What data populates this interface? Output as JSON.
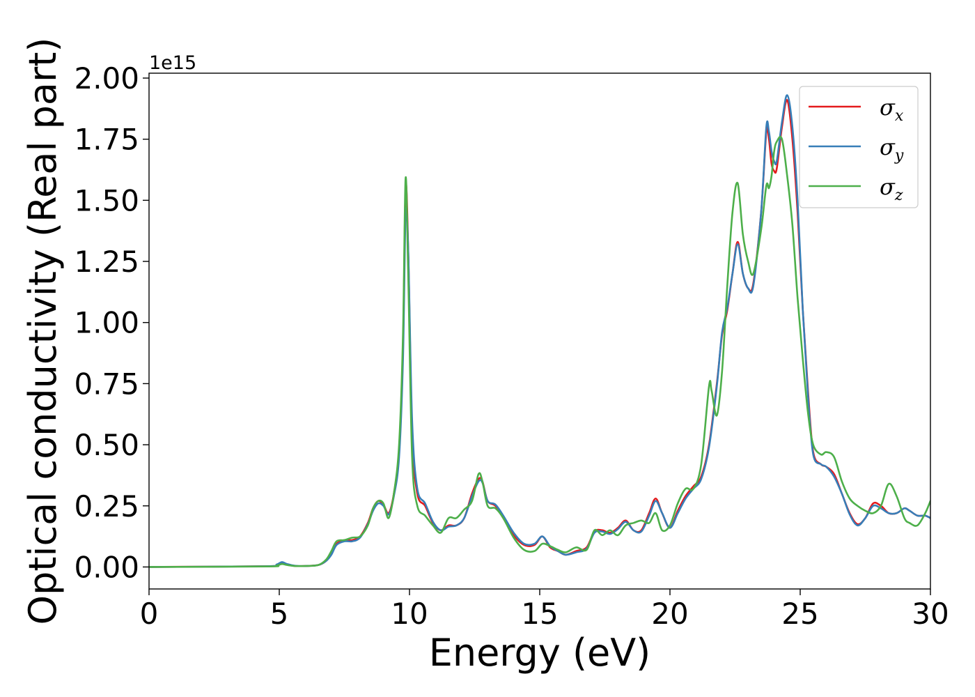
{
  "chart_data": {
    "type": "line",
    "title": "",
    "xlabel": "Energy (eV)",
    "ylabel": "Optical conductivity (Real part)",
    "y_offset_label": "1e15",
    "xlim": [
      0,
      30
    ],
    "ylim": [
      -0.09,
      2.02
    ],
    "x_ticks": [
      0,
      5,
      10,
      15,
      20,
      25,
      30
    ],
    "x_tick_labels": [
      "0",
      "5",
      "10",
      "15",
      "20",
      "25",
      "30"
    ],
    "y_ticks": [
      0.0,
      0.25,
      0.5,
      0.75,
      1.0,
      1.25,
      1.5,
      1.75,
      2.0
    ],
    "y_tick_labels": [
      "0.00",
      "0.25",
      "0.50",
      "0.75",
      "1.00",
      "1.25",
      "1.50",
      "1.75",
      "2.00"
    ],
    "grid": false,
    "legend_position": "top-right",
    "series": [
      {
        "name": "σx",
        "symbol": "σ",
        "subscript": "x",
        "color": "#e41a1c",
        "x": [
          0,
          4.5,
          4.9,
          5.1,
          5.3,
          5.6,
          6.0,
          6.5,
          6.8,
          7.0,
          7.2,
          7.5,
          7.8,
          8.1,
          8.4,
          8.6,
          8.8,
          9.0,
          9.2,
          9.4,
          9.6,
          9.75,
          9.85,
          9.95,
          10.1,
          10.3,
          10.6,
          10.9,
          11.2,
          11.5,
          11.8,
          12.1,
          12.4,
          12.65,
          12.8,
          13.0,
          13.3,
          13.6,
          14.0,
          14.4,
          14.8,
          15.1,
          15.4,
          15.7,
          16.0,
          16.4,
          16.8,
          17.1,
          17.4,
          17.7,
          18.0,
          18.3,
          18.6,
          18.9,
          19.2,
          19.45,
          19.7,
          20.0,
          20.3,
          20.6,
          20.9,
          21.2,
          21.5,
          21.8,
          22.0,
          22.2,
          22.4,
          22.6,
          22.8,
          23.0,
          23.2,
          23.5,
          23.7,
          23.8,
          23.9,
          24.0,
          24.1,
          24.3,
          24.5,
          24.7,
          24.9,
          25.1,
          25.3,
          25.5,
          25.8,
          26.0,
          26.3,
          26.6,
          26.9,
          27.2,
          27.5,
          27.8,
          28.1,
          28.4,
          28.7,
          29.0,
          29.2,
          29.5,
          29.8,
          30.0
        ],
        "y": [
          0.0,
          0.003,
          0.008,
          0.018,
          0.01,
          0.004,
          0.004,
          0.008,
          0.025,
          0.055,
          0.095,
          0.11,
          0.11,
          0.125,
          0.18,
          0.24,
          0.27,
          0.255,
          0.22,
          0.3,
          0.48,
          0.9,
          1.55,
          1.3,
          0.55,
          0.3,
          0.25,
          0.18,
          0.15,
          0.17,
          0.17,
          0.2,
          0.3,
          0.36,
          0.35,
          0.27,
          0.25,
          0.2,
          0.13,
          0.09,
          0.09,
          0.125,
          0.08,
          0.065,
          0.05,
          0.065,
          0.08,
          0.145,
          0.15,
          0.14,
          0.16,
          0.19,
          0.15,
          0.15,
          0.22,
          0.28,
          0.22,
          0.16,
          0.23,
          0.29,
          0.33,
          0.37,
          0.5,
          0.75,
          0.95,
          1.05,
          1.2,
          1.33,
          1.2,
          1.14,
          1.16,
          1.45,
          1.78,
          1.75,
          1.65,
          1.62,
          1.63,
          1.8,
          1.91,
          1.75,
          1.45,
          1.05,
          0.72,
          0.47,
          0.42,
          0.41,
          0.38,
          0.3,
          0.22,
          0.175,
          0.2,
          0.26,
          0.25,
          0.22,
          0.22,
          0.24,
          0.23,
          0.21,
          0.21,
          0.2
        ]
      },
      {
        "name": "σy",
        "symbol": "σ",
        "subscript": "y",
        "color": "#377eb8",
        "x": [
          0,
          4.5,
          4.9,
          5.1,
          5.3,
          5.6,
          6.0,
          6.5,
          6.8,
          7.0,
          7.2,
          7.5,
          7.8,
          8.1,
          8.4,
          8.6,
          8.8,
          9.0,
          9.2,
          9.4,
          9.6,
          9.75,
          9.85,
          9.95,
          10.1,
          10.3,
          10.6,
          10.9,
          11.2,
          11.5,
          11.8,
          12.1,
          12.4,
          12.65,
          12.8,
          13.0,
          13.3,
          13.6,
          14.0,
          14.4,
          14.8,
          15.1,
          15.4,
          15.7,
          16.0,
          16.4,
          16.8,
          17.1,
          17.4,
          17.7,
          18.0,
          18.3,
          18.6,
          18.9,
          19.2,
          19.45,
          19.7,
          20.0,
          20.3,
          20.6,
          20.9,
          21.2,
          21.5,
          21.8,
          22.0,
          22.2,
          22.4,
          22.6,
          22.8,
          23.0,
          23.2,
          23.5,
          23.7,
          23.8,
          23.9,
          24.0,
          24.1,
          24.3,
          24.5,
          24.7,
          24.9,
          25.1,
          25.3,
          25.5,
          25.8,
          26.0,
          26.3,
          26.6,
          26.9,
          27.2,
          27.5,
          27.8,
          28.1,
          28.4,
          28.7,
          29.0,
          29.2,
          29.5,
          29.8,
          30.0
        ],
        "y": [
          0.0,
          0.003,
          0.01,
          0.02,
          0.012,
          0.005,
          0.004,
          0.008,
          0.025,
          0.05,
          0.09,
          0.105,
          0.105,
          0.12,
          0.175,
          0.23,
          0.26,
          0.25,
          0.215,
          0.29,
          0.45,
          0.85,
          1.44,
          1.3,
          0.6,
          0.32,
          0.26,
          0.185,
          0.15,
          0.165,
          0.17,
          0.2,
          0.29,
          0.35,
          0.345,
          0.27,
          0.255,
          0.21,
          0.14,
          0.095,
          0.095,
          0.125,
          0.085,
          0.065,
          0.05,
          0.06,
          0.075,
          0.14,
          0.145,
          0.135,
          0.155,
          0.185,
          0.15,
          0.145,
          0.21,
          0.27,
          0.22,
          0.16,
          0.22,
          0.28,
          0.32,
          0.36,
          0.49,
          0.74,
          0.96,
          1.06,
          1.2,
          1.32,
          1.2,
          1.14,
          1.15,
          1.45,
          1.8,
          1.78,
          1.7,
          1.66,
          1.66,
          1.82,
          1.93,
          1.8,
          1.5,
          1.05,
          0.7,
          0.46,
          0.42,
          0.41,
          0.37,
          0.3,
          0.215,
          0.17,
          0.2,
          0.25,
          0.24,
          0.22,
          0.22,
          0.24,
          0.23,
          0.21,
          0.21,
          0.2
        ]
      },
      {
        "name": "σz",
        "symbol": "σ",
        "subscript": "z",
        "color": "#4daf4a",
        "x": [
          0,
          4.5,
          4.9,
          5.1,
          5.3,
          5.6,
          6.0,
          6.5,
          6.8,
          7.0,
          7.2,
          7.5,
          7.8,
          8.1,
          8.4,
          8.6,
          8.8,
          9.0,
          9.2,
          9.4,
          9.6,
          9.75,
          9.85,
          9.95,
          10.1,
          10.3,
          10.6,
          10.9,
          11.2,
          11.5,
          11.8,
          12.1,
          12.4,
          12.65,
          12.8,
          13.0,
          13.3,
          13.6,
          14.0,
          14.4,
          14.8,
          15.1,
          15.4,
          15.7,
          16.0,
          16.4,
          16.8,
          17.1,
          17.4,
          17.7,
          18.0,
          18.3,
          18.6,
          18.9,
          19.2,
          19.45,
          19.7,
          20.0,
          20.3,
          20.6,
          20.9,
          21.2,
          21.5,
          21.6,
          21.8,
          22.0,
          22.2,
          22.4,
          22.6,
          22.8,
          23.0,
          23.2,
          23.5,
          23.7,
          23.8,
          23.9,
          24.0,
          24.1,
          24.3,
          24.5,
          24.7,
          24.9,
          25.1,
          25.3,
          25.5,
          25.8,
          26.0,
          26.3,
          26.6,
          26.9,
          27.2,
          27.5,
          27.8,
          28.1,
          28.4,
          28.7,
          29.0,
          29.2,
          29.5,
          29.8,
          30.0
        ],
        "y": [
          0.0,
          0.002,
          0.006,
          0.012,
          0.008,
          0.004,
          0.004,
          0.008,
          0.03,
          0.065,
          0.105,
          0.11,
          0.12,
          0.125,
          0.17,
          0.24,
          0.27,
          0.26,
          0.2,
          0.3,
          0.5,
          0.95,
          1.59,
          1.2,
          0.45,
          0.25,
          0.21,
          0.17,
          0.14,
          0.2,
          0.2,
          0.235,
          0.27,
          0.38,
          0.35,
          0.25,
          0.24,
          0.2,
          0.12,
          0.07,
          0.065,
          0.095,
          0.085,
          0.07,
          0.06,
          0.08,
          0.07,
          0.15,
          0.13,
          0.15,
          0.13,
          0.17,
          0.18,
          0.19,
          0.18,
          0.22,
          0.15,
          0.17,
          0.26,
          0.32,
          0.32,
          0.42,
          0.74,
          0.72,
          0.62,
          0.8,
          1.15,
          1.45,
          1.57,
          1.36,
          1.25,
          1.2,
          1.38,
          1.56,
          1.55,
          1.6,
          1.7,
          1.74,
          1.75,
          1.6,
          1.4,
          1.1,
          0.85,
          0.63,
          0.5,
          0.46,
          0.47,
          0.45,
          0.35,
          0.28,
          0.25,
          0.23,
          0.22,
          0.25,
          0.34,
          0.29,
          0.2,
          0.18,
          0.17,
          0.22,
          0.27
        ]
      }
    ]
  }
}
